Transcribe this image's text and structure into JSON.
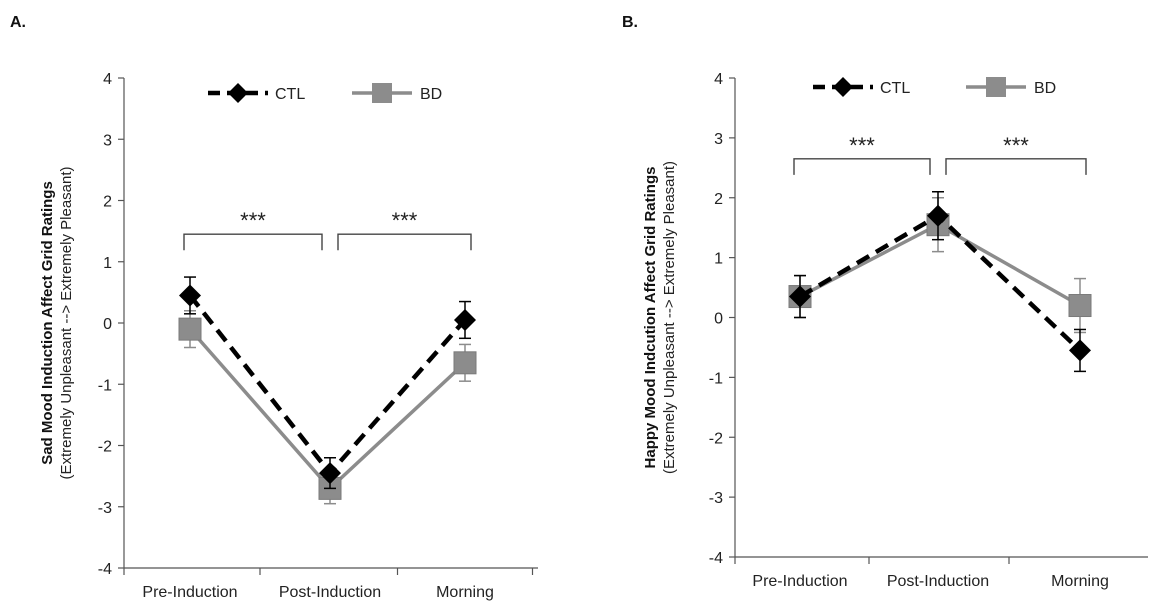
{
  "colors": {
    "ctl": "#000000",
    "bd": "#8c8c8c",
    "axis": "#555555"
  },
  "chart_data": [
    {
      "type": "line",
      "panel_label": "A.",
      "ylabel": "Sad Mood Induction Affect Grid Ratings",
      "ylabel_sub": "(Extremely Unpleasant  -->  Extremely  Pleasant)",
      "ylim": [
        -4,
        4
      ],
      "yticks": [
        -4,
        -3,
        -2,
        -1,
        0,
        1,
        2,
        3,
        4
      ],
      "categories": [
        "Pre-Induction",
        "Post-Induction",
        "Morning"
      ],
      "grid": false,
      "legend_position": "top",
      "series": [
        {
          "name": "CTL",
          "values": [
            0.45,
            -2.45,
            0.05
          ],
          "errors": [
            0.3,
            0.25,
            0.3
          ],
          "marker": "diamond",
          "dash": true
        },
        {
          "name": "BD",
          "values": [
            -0.1,
            -2.7,
            -0.65
          ],
          "errors": [
            0.3,
            0.25,
            0.3
          ],
          "marker": "square",
          "dash": false
        }
      ],
      "significance": [
        {
          "from": 0,
          "to": 1,
          "label": "***",
          "level": 1.45
        },
        {
          "from": 1,
          "to": 2,
          "label": "***",
          "level": 1.45
        }
      ]
    },
    {
      "type": "line",
      "panel_label": "B.",
      "ylabel": "Happy Mood Indcution Affect Grid Ratings",
      "ylabel_sub": "(Extremely Unpleasant  -->  Extremely  Pleasant)",
      "ylim": [
        -4,
        4
      ],
      "yticks": [
        -4,
        -3,
        -2,
        -1,
        0,
        1,
        2,
        3,
        4
      ],
      "categories": [
        "Pre-Induction",
        "Post-Induction",
        "Morning"
      ],
      "grid": false,
      "legend_position": "top",
      "series": [
        {
          "name": "CTL",
          "values": [
            0.35,
            1.7,
            -0.55
          ],
          "errors": [
            0.35,
            0.4,
            0.35
          ],
          "marker": "diamond",
          "dash": true
        },
        {
          "name": "BD",
          "values": [
            0.35,
            1.55,
            0.2
          ],
          "errors": [
            0.35,
            0.45,
            0.45
          ],
          "marker": "square",
          "dash": false
        }
      ],
      "significance": [
        {
          "from": 0,
          "to": 1,
          "label": "***",
          "level": 2.65
        },
        {
          "from": 1,
          "to": 2,
          "label": "***",
          "level": 2.65
        }
      ]
    }
  ]
}
